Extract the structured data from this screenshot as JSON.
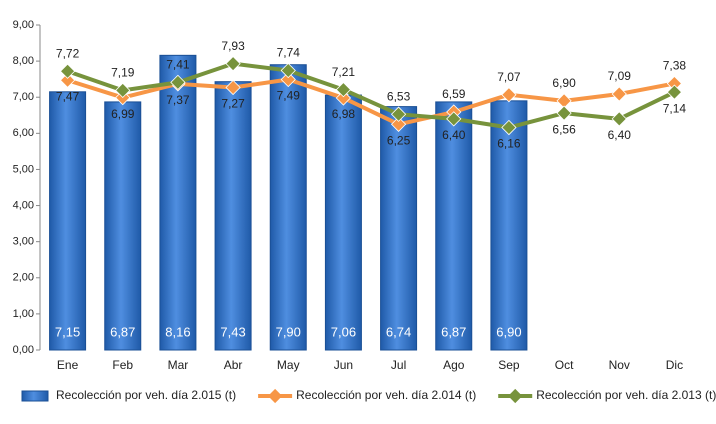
{
  "chart_data": {
    "type": "bar_line",
    "categories": [
      "Ene",
      "Feb",
      "Mar",
      "Abr",
      "May",
      "Jun",
      "Jul",
      "Ago",
      "Sep",
      "Oct",
      "Nov",
      "Dic"
    ],
    "series": [
      {
        "name": "Recolección por veh. día 2.015 (t)",
        "type": "bar",
        "color": "#2e6fc4",
        "values": [
          7.15,
          6.87,
          8.16,
          7.43,
          7.9,
          7.06,
          6.74,
          6.87,
          6.9,
          null,
          null,
          null
        ],
        "value_labels": [
          "7,15",
          "6,87",
          "8,16",
          "7,43",
          "7,90",
          "7,06",
          "6,74",
          "6,87",
          "6,90",
          null,
          null,
          null
        ]
      },
      {
        "name": "Recolección por veh. día 2.014 (t)",
        "type": "line",
        "color": "#f79646",
        "values": [
          7.47,
          6.99,
          7.37,
          7.27,
          7.49,
          6.98,
          6.25,
          6.59,
          7.07,
          6.9,
          7.09,
          7.38
        ],
        "value_labels": [
          "7,47",
          "6,99",
          "7,37",
          "7,27",
          "7,49",
          "6,98",
          "6,25",
          "6,59",
          "7,07",
          "6,90",
          "7,09",
          "7,38"
        ]
      },
      {
        "name": "Recolección por veh. día 2.013 (t)",
        "type": "line",
        "color": "#77933c",
        "values": [
          7.72,
          7.19,
          7.41,
          7.93,
          7.74,
          7.21,
          6.53,
          6.4,
          6.16,
          6.56,
          6.4,
          7.14
        ],
        "value_labels": [
          "7,72",
          "7,19",
          "7,41",
          "7,93",
          "7,74",
          "7,21",
          "6,53",
          "6,40",
          "6,16",
          "6,56",
          "6,40",
          "7,14"
        ]
      }
    ],
    "ylim": [
      0,
      9
    ],
    "yticks": [
      {
        "value": 0,
        "label": "0,00"
      },
      {
        "value": 1,
        "label": "1,00"
      },
      {
        "value": 2,
        "label": "2,00"
      },
      {
        "value": 3,
        "label": "3,00"
      },
      {
        "value": 4,
        "label": "4,00"
      },
      {
        "value": 5,
        "label": "5,00"
      },
      {
        "value": 6,
        "label": "6,00"
      },
      {
        "value": 7,
        "label": "7,00"
      },
      {
        "value": 8,
        "label": "8,00"
      },
      {
        "value": 9,
        "label": "9,00"
      }
    ],
    "legend": "bottom"
  }
}
